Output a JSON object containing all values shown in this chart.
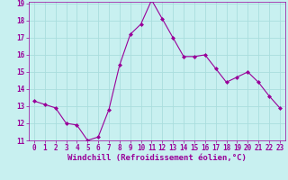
{
  "x": [
    0,
    1,
    2,
    3,
    4,
    5,
    6,
    7,
    8,
    9,
    10,
    11,
    12,
    13,
    14,
    15,
    16,
    17,
    18,
    19,
    20,
    21,
    22,
    23
  ],
  "y": [
    13.3,
    13.1,
    12.9,
    12.0,
    11.9,
    11.0,
    11.2,
    12.8,
    15.4,
    17.2,
    17.8,
    19.2,
    18.1,
    17.0,
    15.9,
    15.9,
    16.0,
    15.2,
    14.4,
    14.7,
    15.0,
    14.4,
    13.6,
    12.9
  ],
  "line_color": "#990099",
  "marker_color": "#990099",
  "bg_color": "#c8f0f0",
  "grid_color": "#aadddd",
  "xlabel": "Windchill (Refroidissement éolien,°C)",
  "ylim": [
    11,
    19
  ],
  "xlim": [
    -0.5,
    23.5
  ],
  "yticks": [
    11,
    12,
    13,
    14,
    15,
    16,
    17,
    18,
    19
  ],
  "xticks": [
    0,
    1,
    2,
    3,
    4,
    5,
    6,
    7,
    8,
    9,
    10,
    11,
    12,
    13,
    14,
    15,
    16,
    17,
    18,
    19,
    20,
    21,
    22,
    23
  ],
  "tick_color": "#990099",
  "tick_fontsize": 5.5,
  "xlabel_fontsize": 6.5
}
